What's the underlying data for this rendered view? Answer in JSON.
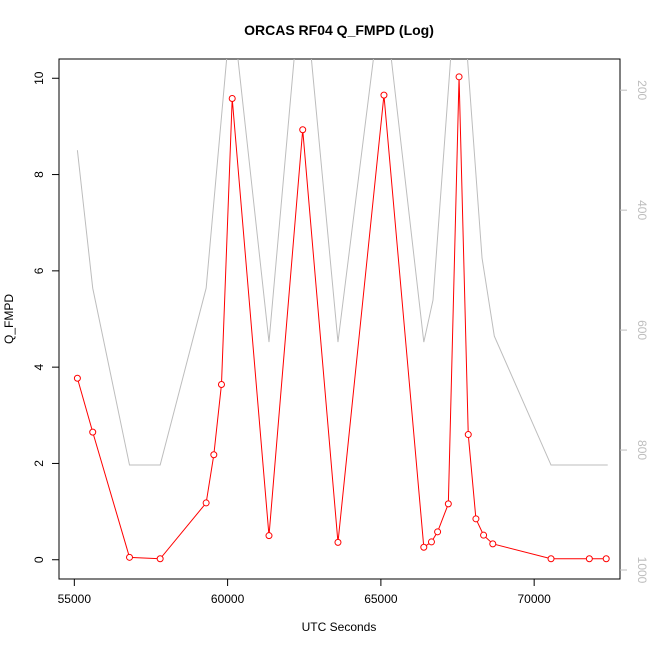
{
  "chart_data": {
    "type": "line",
    "title": "ORCAS RF04 Q_FMPD (Log)",
    "xlabel": "UTC Seconds",
    "ylabel": "Q_FMPD",
    "xlim": [
      54500,
      72800
    ],
    "ylim": [
      -0.4,
      10.4
    ],
    "x_ticks": [
      55000,
      60000,
      65000,
      70000
    ],
    "y_ticks": [
      0,
      2,
      4,
      6,
      8,
      10
    ],
    "y2_ticks": [
      200,
      400,
      600,
      800,
      1000
    ],
    "y2_reversed": true,
    "y2lim": [
      1015,
      148
    ],
    "grid": false,
    "legend": "none",
    "colors": {
      "primary": "#ff0000",
      "secondary": "#bdbdbd",
      "frame": "#000000"
    },
    "series": [
      {
        "axis": "left",
        "style": "line-markers",
        "x": [
          55100,
          55600,
          56800,
          57800,
          59300,
          59550,
          59800,
          60150,
          61350,
          62450,
          63600,
          65100,
          66400,
          66650,
          66850,
          67200,
          67550,
          67850,
          68100,
          68350,
          68650,
          70550,
          71800,
          72350
        ],
        "y": [
          3.77,
          2.65,
          0.05,
          0.02,
          1.18,
          2.18,
          3.64,
          9.58,
          0.5,
          8.93,
          0.36,
          9.65,
          0.26,
          0.37,
          0.58,
          1.16,
          10.03,
          2.6,
          0.85,
          0.51,
          0.33,
          0.02,
          0.02,
          0.02
        ]
      },
      {
        "axis": "right",
        "style": "line",
        "x": [
          55100,
          55600,
          56800,
          57800,
          59300,
          60000,
          60300,
          61350,
          62200,
          62700,
          63600,
          64800,
          65300,
          66400,
          66700,
          67300,
          67800,
          68300,
          68700,
          70550,
          72400
        ],
        "y": [
          300,
          530,
          825,
          825,
          530,
          130,
          130,
          620,
          130,
          130,
          620,
          130,
          130,
          620,
          550,
          130,
          130,
          480,
          610,
          825,
          825
        ]
      }
    ]
  }
}
